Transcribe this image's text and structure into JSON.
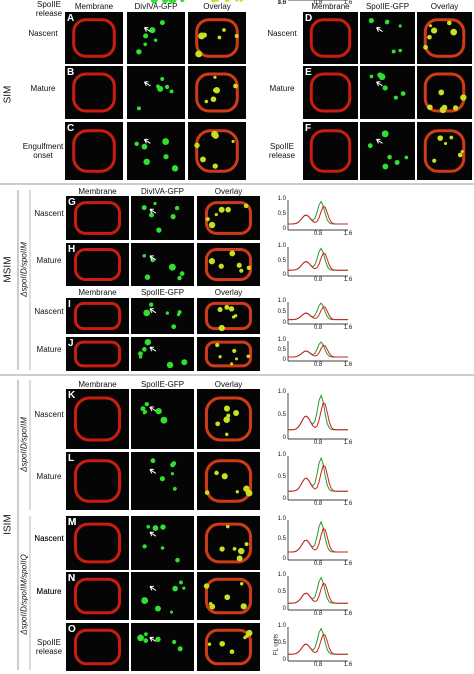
{
  "top_left": {
    "section_label": "SIM",
    "columns": [
      "Membrane",
      "DivIVA-GFP",
      "Overlay"
    ],
    "rows": [
      {
        "panel": "A",
        "label": "Nascent"
      },
      {
        "panel": "B",
        "label": "Mature"
      },
      {
        "panel": "C",
        "label": "Engulfment onset"
      }
    ]
  },
  "top_right": {
    "columns": [
      "Membrane",
      "SpoIIE-GFP",
      "Overlay"
    ],
    "rows": [
      {
        "panel": "D",
        "label": "Nascent"
      },
      {
        "panel": "E",
        "label": "Mature"
      },
      {
        "panel": "F",
        "label": "SpoIIE release"
      }
    ]
  },
  "msim": {
    "section_label": "MSIM",
    "strain": "ΔspoIID/spoIIM",
    "blocks": [
      {
        "columns": [
          "Membrane",
          "DivIVA-GFP",
          "Overlay"
        ],
        "rows": [
          {
            "panel": "G",
            "label": "Nascent"
          },
          {
            "panel": "H",
            "label": "Mature"
          }
        ]
      },
      {
        "columns": [
          "Membrane",
          "SpoIIE-GFP",
          "Overlay"
        ],
        "rows": [
          {
            "panel": "I",
            "label": "Nascent"
          },
          {
            "panel": "J",
            "label": "Mature"
          }
        ]
      }
    ]
  },
  "isim": {
    "section_label": "ISIM",
    "columns": [
      "Membrane",
      "SpoIIE-GFP",
      "Overlay"
    ],
    "groups": [
      {
        "strain": "ΔspoIID/spoIIM",
        "rows": [
          {
            "panel": "K",
            "label": "Nascent"
          },
          {
            "panel": "L",
            "label": "Mature"
          }
        ]
      },
      {
        "strain": "ΔspoIID/spoIIM/spoIIQ",
        "rows": [
          {
            "panel": "M",
            "label": "Nascent"
          },
          {
            "panel": "N",
            "label": "Mature"
          },
          {
            "panel": "O",
            "label": "SpoIIE release"
          }
        ]
      }
    ]
  },
  "plot_axis": {
    "yticks": [
      "1.0",
      "0.5",
      "0"
    ],
    "xticks": [
      "0.8",
      "1.6"
    ],
    "ylabel": "FL units"
  }
}
